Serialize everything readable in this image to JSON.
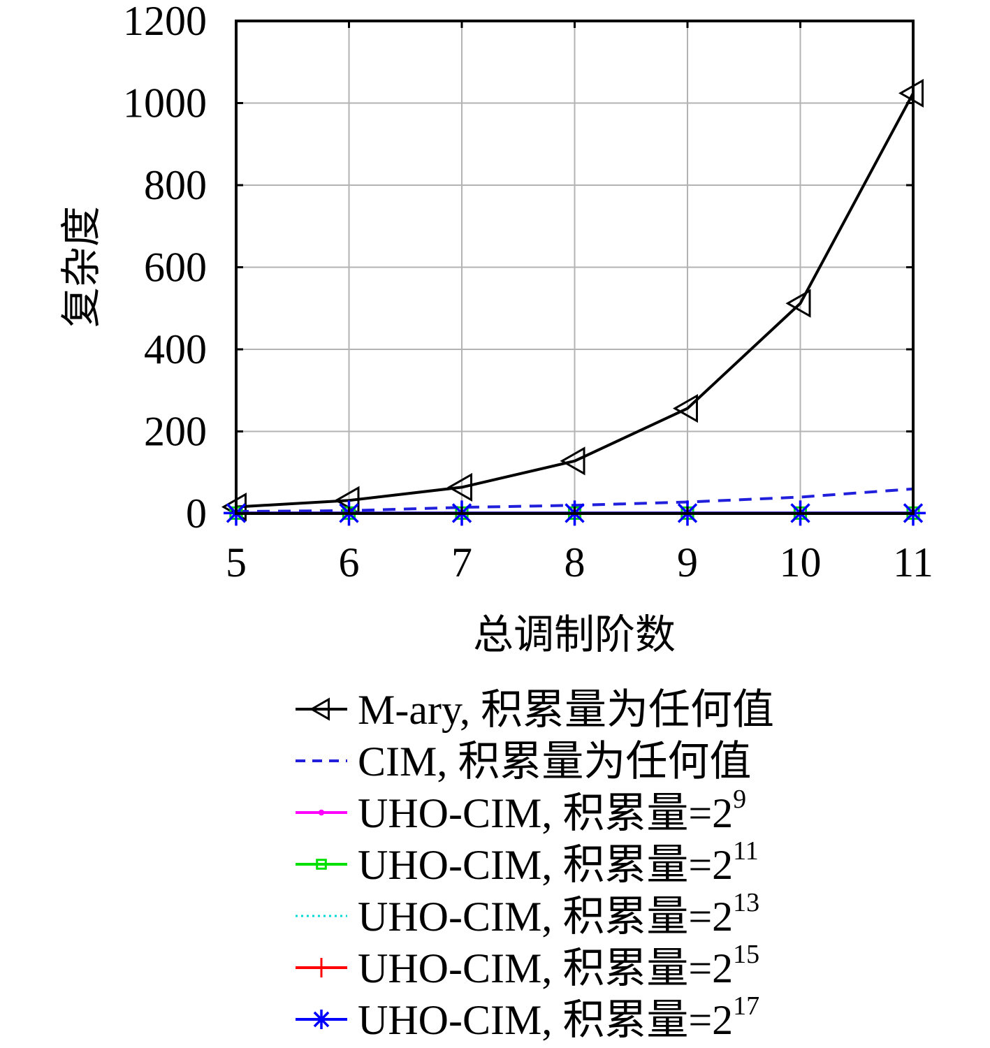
{
  "chart_data": {
    "type": "line",
    "xlabel": "总调制阶数",
    "ylabel": "复杂度",
    "x": [
      5,
      6,
      7,
      8,
      9,
      10,
      11
    ],
    "xlim": [
      5,
      11
    ],
    "ylim": [
      0,
      1200
    ],
    "yticks": [
      0,
      200,
      400,
      600,
      800,
      1000,
      1200
    ],
    "grid": true,
    "legend_position": "below",
    "series": [
      {
        "name": "M-ary, 积累量为任何值",
        "color": "#000000",
        "style": "solid",
        "marker": "triangle-left",
        "values": [
          16,
          32,
          64,
          128,
          256,
          512,
          1024
        ]
      },
      {
        "name": "CIM, 积累量为任何值",
        "color": "#1f1fdc",
        "style": "dashed",
        "marker": "none",
        "values": [
          5,
          7,
          15,
          20,
          28,
          40,
          60
        ]
      },
      {
        "name": "UHO-CIM, 积累量=2",
        "sup": "9",
        "color": "#ff00ff",
        "style": "solid",
        "marker": "dot",
        "values": [
          1,
          1,
          1,
          1,
          1,
          1,
          1
        ]
      },
      {
        "name": "UHO-CIM, 积累量=2",
        "sup": "11",
        "color": "#00e000",
        "style": "solid",
        "marker": "square",
        "values": [
          1,
          1,
          1,
          1,
          1,
          1,
          1
        ]
      },
      {
        "name": "UHO-CIM, 积累量=2",
        "sup": "13",
        "color": "#00d8d8",
        "style": "dotted",
        "marker": "none",
        "values": [
          1,
          1,
          1,
          1,
          1,
          1,
          1
        ]
      },
      {
        "name": "UHO-CIM, 积累量=2",
        "sup": "15",
        "color": "#ff0000",
        "style": "solid",
        "marker": "plus",
        "values": [
          1,
          1,
          1,
          1,
          1,
          1,
          1
        ]
      },
      {
        "name": "UHO-CIM, 积累量=2",
        "sup": "17",
        "color": "#0000ff",
        "style": "solid",
        "marker": "asterisk",
        "values": [
          1,
          1,
          1,
          1,
          1,
          1,
          1
        ]
      }
    ]
  }
}
